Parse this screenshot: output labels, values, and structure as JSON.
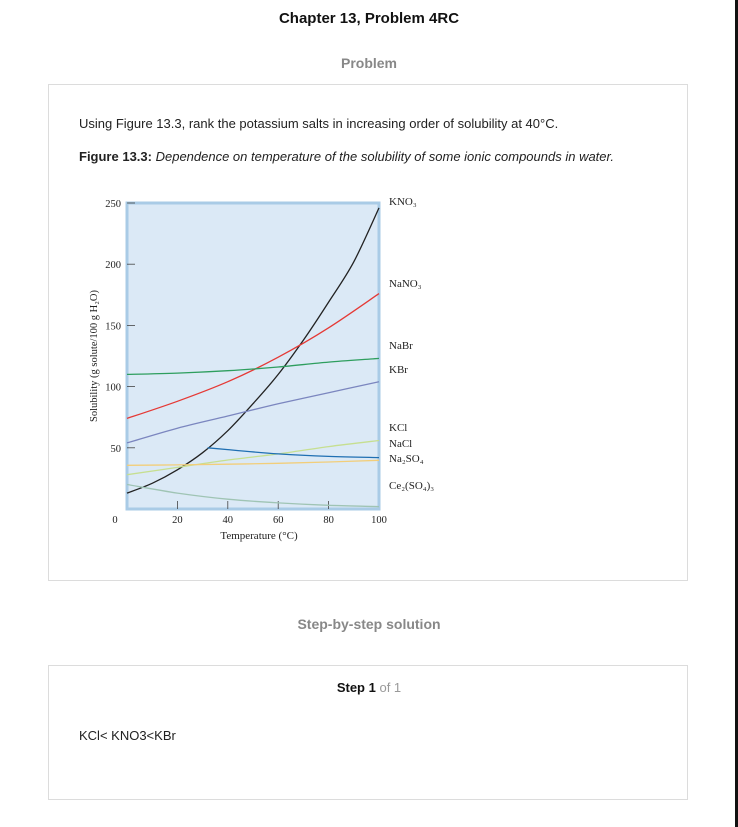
{
  "header": {
    "chapter_title": "Chapter 13, Problem 4RC",
    "problem_heading": "Problem"
  },
  "problem": {
    "question": "Using Figure 13.3, rank the potassium salts in increasing order of solubility at 40°C.",
    "figure_label": "Figure 13.3:",
    "figure_caption": "Dependence on temperature of the solubility of some ionic compounds in water."
  },
  "chart_data": {
    "type": "line",
    "xlabel": "Temperature (°C)",
    "ylabel": "Solubility (g solute/100 g H₂O)",
    "xlim": [
      0,
      100
    ],
    "ylim": [
      0,
      250
    ],
    "x_ticks": [
      "0",
      "20",
      "40",
      "60",
      "80",
      "100"
    ],
    "y_ticks": [
      "50",
      "100",
      "150",
      "200",
      "250"
    ],
    "background": "#dbe9f6",
    "border_color": "#a9cbe6",
    "series": [
      {
        "name": "KNO₃",
        "color": "#222222",
        "x": [
          0,
          10,
          20,
          30,
          40,
          50,
          60,
          70,
          80,
          90,
          100
        ],
        "y": [
          13,
          21,
          32,
          46,
          64,
          86,
          110,
          138,
          169,
          202,
          246
        ]
      },
      {
        "name": "NaNO₃",
        "color": "#e53935",
        "x": [
          0,
          20,
          40,
          60,
          80,
          100
        ],
        "y": [
          74,
          88,
          104,
          124,
          148,
          176
        ]
      },
      {
        "name": "NaBr",
        "color": "#2e9e5e",
        "x": [
          0,
          20,
          40,
          60,
          80,
          100
        ],
        "y": [
          110,
          111,
          113,
          116,
          120,
          123
        ]
      },
      {
        "name": "KBr",
        "color": "#7b86bf",
        "x": [
          0,
          20,
          40,
          60,
          80,
          100
        ],
        "y": [
          54,
          66,
          76,
          86,
          95,
          104
        ]
      },
      {
        "name": "KCl",
        "color": "#c6df90",
        "x": [
          0,
          20,
          40,
          60,
          80,
          100
        ],
        "y": [
          28,
          34,
          40,
          45,
          51,
          56
        ]
      },
      {
        "name": "NaCl",
        "color": "#f2ce7a",
        "x": [
          0,
          20,
          40,
          60,
          80,
          100
        ],
        "y": [
          35.7,
          36,
          36.6,
          37.3,
          38.4,
          39.8
        ]
      },
      {
        "name": "Na₂SO₄",
        "color": "#1f6fb2",
        "x": [
          32,
          40,
          60,
          80,
          100
        ],
        "y": [
          50,
          48.5,
          45,
          43,
          42
        ]
      },
      {
        "name": "Ce₂(SO₄)₃",
        "color": "#9fc4b4",
        "x": [
          0,
          20,
          40,
          60,
          80,
          100
        ],
        "y": [
          20,
          13,
          8,
          5,
          3,
          2
        ]
      }
    ]
  },
  "solution": {
    "heading": "Step-by-step solution",
    "step_word": "Step 1",
    "step_of": "of 1",
    "answer": "KCl< KNO3<KBr"
  }
}
